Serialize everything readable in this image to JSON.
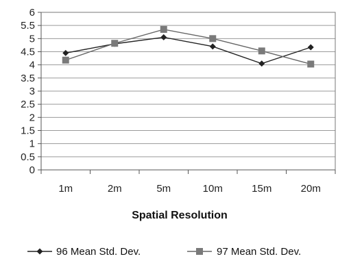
{
  "chart_data": {
    "type": "line",
    "title": "",
    "xlabel": "Spatial Resolution",
    "ylabel": "",
    "categories": [
      "1m",
      "2m",
      "5m",
      "10m",
      "15m",
      "20m"
    ],
    "ylim": [
      0,
      6
    ],
    "yticks": [
      "0",
      "0.5",
      "1",
      "1.5",
      "2",
      "2.5",
      "3",
      "3.5",
      "4",
      "4.5",
      "5",
      "5.5",
      "6"
    ],
    "grid": true,
    "legend_position": "bottom",
    "series": [
      {
        "name": "96 Mean Std. Dev.",
        "marker": "diamond",
        "color": "#222222",
        "values": [
          4.45,
          4.8,
          5.05,
          4.7,
          4.05,
          4.67
        ]
      },
      {
        "name": "97 Mean Std. Dev.",
        "marker": "square",
        "color": "#7a7a7a",
        "values": [
          4.18,
          4.82,
          5.35,
          5.0,
          4.53,
          4.03
        ]
      }
    ]
  }
}
